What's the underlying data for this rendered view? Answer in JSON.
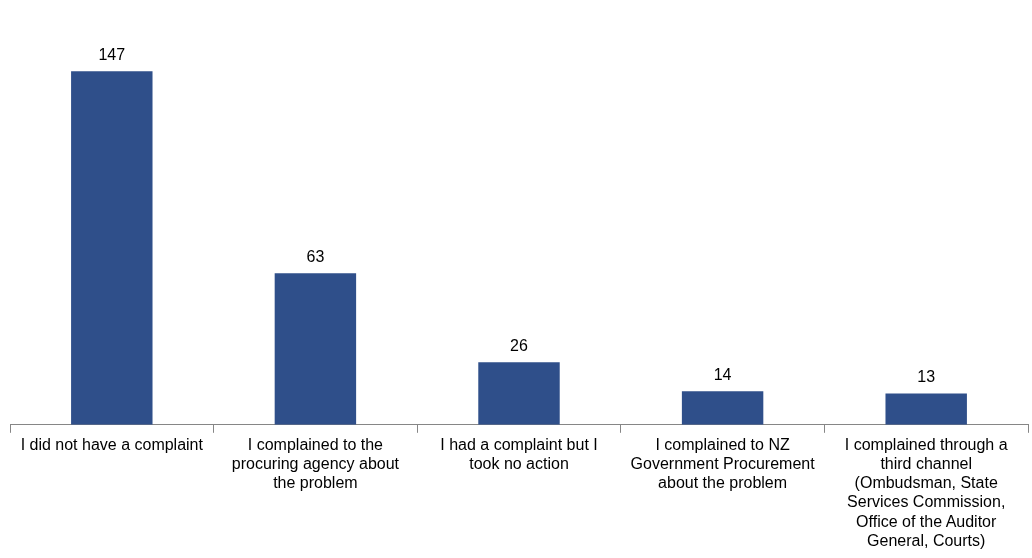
{
  "chart_data": {
    "type": "bar",
    "categories": [
      "I did not have a complaint",
      "I complained to the procuring agency about the problem",
      "I had a complaint but I took no action",
      "I complained to NZ Government Procurement about the problem",
      "I complained through a third channel (Ombudsman, State Services Commission, Office of the Auditor General, Courts)"
    ],
    "values": [
      147,
      63,
      26,
      14,
      13
    ],
    "color": "#2f4f8a",
    "data_labels": true,
    "grid": false,
    "legend": false
  }
}
